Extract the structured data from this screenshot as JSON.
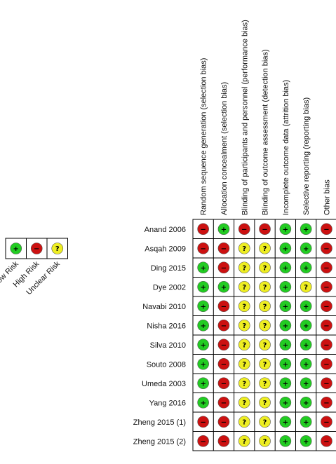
{
  "chart_data": {
    "type": "table",
    "columns": [
      "Random sequence generation (selection bias)",
      "Allocation concealment (selection bias)",
      "Blinding of participants and personnel (performance bias)",
      "Blinding of outcome assessment (detection bias)",
      "Incomplete outcome data (attrition bias)",
      "Selective reporting (reporting bias)",
      "Other bias"
    ],
    "rows": [
      {
        "study": "Anand 2006",
        "ratings": [
          "high",
          "low",
          "high",
          "high",
          "low",
          "low",
          "high"
        ]
      },
      {
        "study": "Asqah 2009",
        "ratings": [
          "high",
          "high",
          "unclear",
          "unclear",
          "low",
          "low",
          "high"
        ]
      },
      {
        "study": "Ding 2015",
        "ratings": [
          "low",
          "high",
          "unclear",
          "unclear",
          "low",
          "low",
          "high"
        ]
      },
      {
        "study": "Dye 2002",
        "ratings": [
          "low",
          "low",
          "unclear",
          "unclear",
          "low",
          "unclear",
          "high"
        ]
      },
      {
        "study": "Navabi 2010",
        "ratings": [
          "low",
          "high",
          "unclear",
          "unclear",
          "low",
          "low",
          "high"
        ]
      },
      {
        "study": "Nisha 2016",
        "ratings": [
          "low",
          "high",
          "unclear",
          "unclear",
          "low",
          "low",
          "high"
        ]
      },
      {
        "study": "Silva 2010",
        "ratings": [
          "low",
          "high",
          "unclear",
          "unclear",
          "low",
          "low",
          "high"
        ]
      },
      {
        "study": "Souto 2008",
        "ratings": [
          "low",
          "high",
          "unclear",
          "unclear",
          "low",
          "low",
          "high"
        ]
      },
      {
        "study": "Umeda 2003",
        "ratings": [
          "low",
          "high",
          "unclear",
          "unclear",
          "low",
          "low",
          "high"
        ]
      },
      {
        "study": "Yang 2016",
        "ratings": [
          "low",
          "high",
          "unclear",
          "unclear",
          "low",
          "low",
          "high"
        ]
      },
      {
        "study": "Zheng 2015 (1)",
        "ratings": [
          "high",
          "high",
          "unclear",
          "unclear",
          "low",
          "low",
          "high"
        ]
      },
      {
        "study": "Zheng 2015 (2)",
        "ratings": [
          "high",
          "high",
          "unclear",
          "unclear",
          "low",
          "low",
          "high"
        ]
      }
    ],
    "legend": [
      {
        "key": "low",
        "label": "Low Risk",
        "symbol": "+",
        "color": "#22cc22"
      },
      {
        "key": "high",
        "label": "High Risk",
        "symbol": "−",
        "color": "#cc1111"
      },
      {
        "key": "unclear",
        "label": "Unclear Risk",
        "symbol": "?",
        "color": "#eeee22"
      }
    ],
    "legend_placement": "left"
  }
}
